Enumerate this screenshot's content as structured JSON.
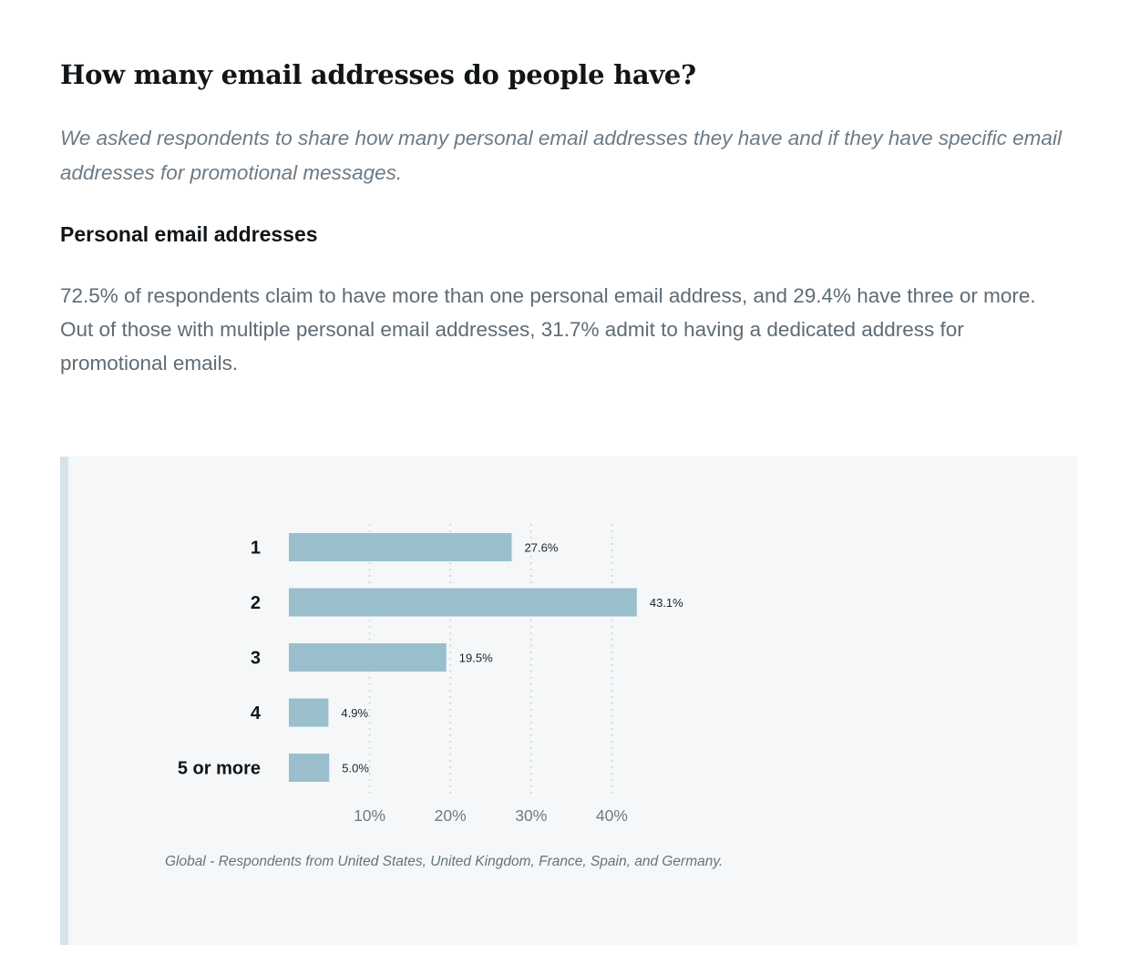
{
  "title": "How many email addresses do people have?",
  "intro": "We asked respondents to share how many personal email addresses they have and if they have specific email addresses for promotional messages.",
  "subheading": "Personal email addresses",
  "body": "72.5% of respondents claim to have more than one personal email address, and 29.4% have three or more. Out of those with multiple personal email addresses, 31.7% admit to having a dedicated address for promotional emails.",
  "footnote": "Global - Respondents from United States, United Kingdom, France, Spain, and Germany.",
  "chart_data": {
    "type": "bar",
    "orientation": "horizontal",
    "categories": [
      "1",
      "2",
      "3",
      "4",
      "5 or more"
    ],
    "values": [
      27.6,
      43.1,
      19.5,
      4.9,
      5.0
    ],
    "value_labels": [
      "27.6%",
      "43.1%",
      "19.5%",
      "4.9%",
      "5.0%"
    ],
    "xticks": [
      10,
      20,
      30,
      40
    ],
    "xtick_labels": [
      "10%",
      "20%",
      "30%",
      "40%"
    ],
    "xlim": [
      0,
      43.1
    ],
    "grid": "vertical-dotted",
    "title": "",
    "xlabel": "",
    "ylabel": "",
    "colors": {
      "bar": "#99bfcd",
      "grid": "#d6dadd"
    }
  }
}
